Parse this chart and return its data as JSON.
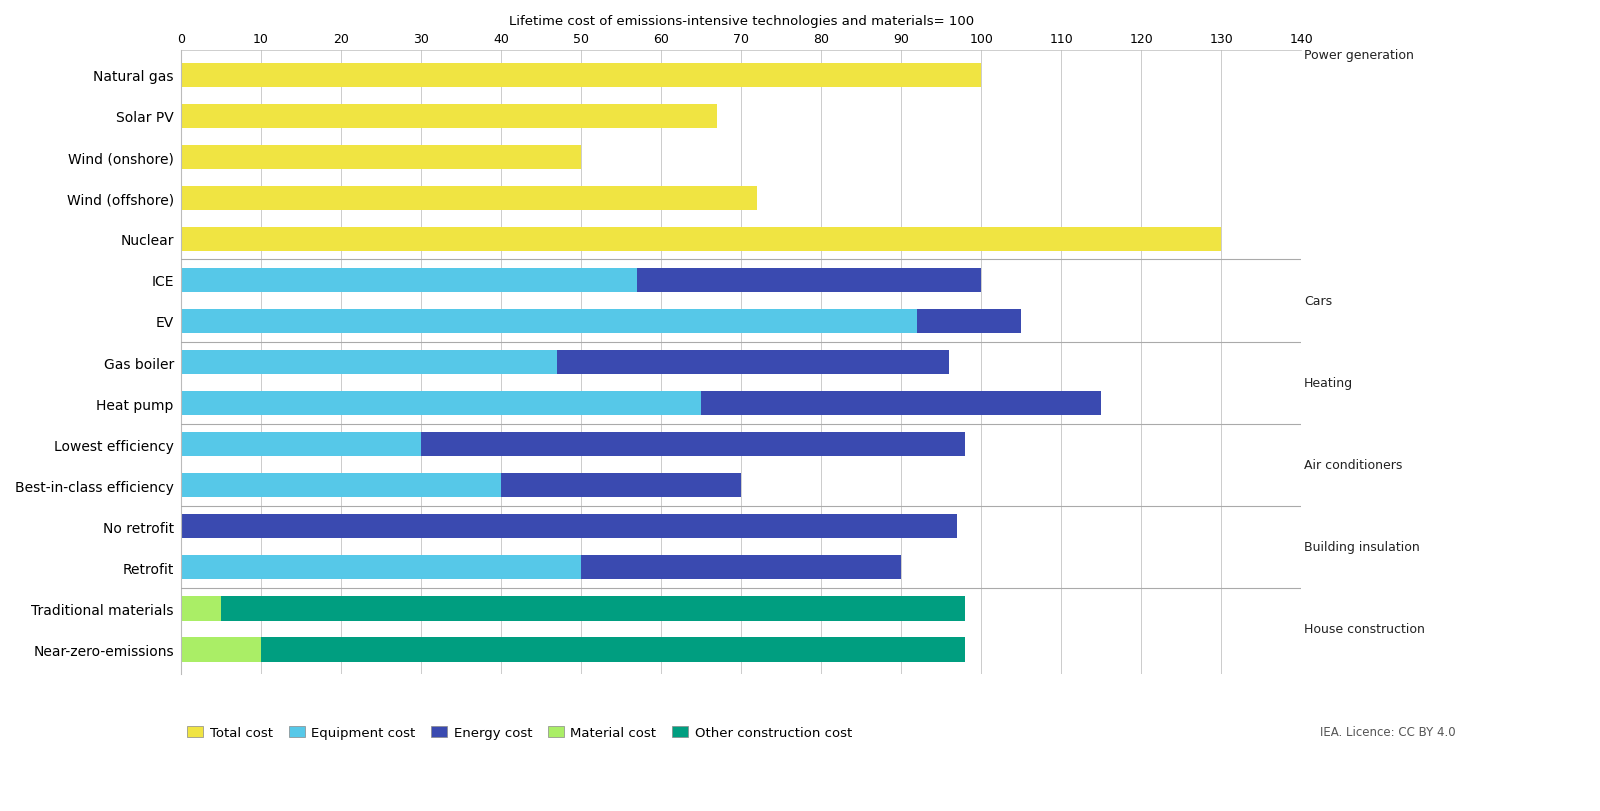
{
  "categories": [
    "Natural gas",
    "Solar PV",
    "Wind (onshore)",
    "Wind (offshore)",
    "Nuclear",
    "ICE",
    "EV",
    "Gas boiler",
    "Heat pump",
    "Lowest efficiency",
    "Best-in-class efficiency",
    "No retrofit",
    "Retrofit",
    "Traditional materials",
    "Near-zero-emissions"
  ],
  "segments": {
    "Total cost": [
      100,
      67,
      50,
      72,
      130,
      0,
      0,
      0,
      0,
      0,
      0,
      0,
      0,
      0,
      0
    ],
    "Equipment cost": [
      0,
      0,
      0,
      0,
      0,
      57,
      92,
      47,
      65,
      30,
      40,
      0,
      50,
      0,
      0
    ],
    "Energy cost": [
      0,
      0,
      0,
      0,
      0,
      43,
      13,
      49,
      50,
      68,
      30,
      97,
      40,
      0,
      0
    ],
    "Material cost": [
      0,
      0,
      0,
      0,
      0,
      0,
      0,
      0,
      0,
      0,
      0,
      0,
      0,
      5,
      10
    ],
    "Other construction cost": [
      0,
      0,
      0,
      0,
      0,
      0,
      0,
      0,
      0,
      0,
      0,
      0,
      0,
      93,
      88
    ]
  },
  "colors": {
    "Total cost": "#f0e442",
    "Equipment cost": "#56c8e8",
    "Energy cost": "#3a4ab0",
    "Material cost": "#aaee66",
    "Other construction cost": "#009e80"
  },
  "section_labels": [
    "Power generation",
    "Cars",
    "Heating",
    "Air conditioners",
    "Building insulation",
    "House construction"
  ],
  "section_separators_y": [
    9.5,
    7.5,
    5.5,
    3.5,
    1.5
  ],
  "xlabel": "Lifetime cost of emissions-intensive technologies and materials= 100",
  "xlim": [
    0,
    140
  ],
  "xticks": [
    0,
    10,
    20,
    30,
    40,
    50,
    60,
    70,
    80,
    90,
    100,
    110,
    120,
    130,
    140
  ],
  "background_color": "#ffffff",
  "grid_color": "#cccccc",
  "bar_height": 0.6,
  "source_text": "IEA. Licence: CC BY 4.0",
  "legend_labels": [
    "Total cost",
    "Equipment cost",
    "Energy cost",
    "Material cost",
    "Other construction cost"
  ]
}
